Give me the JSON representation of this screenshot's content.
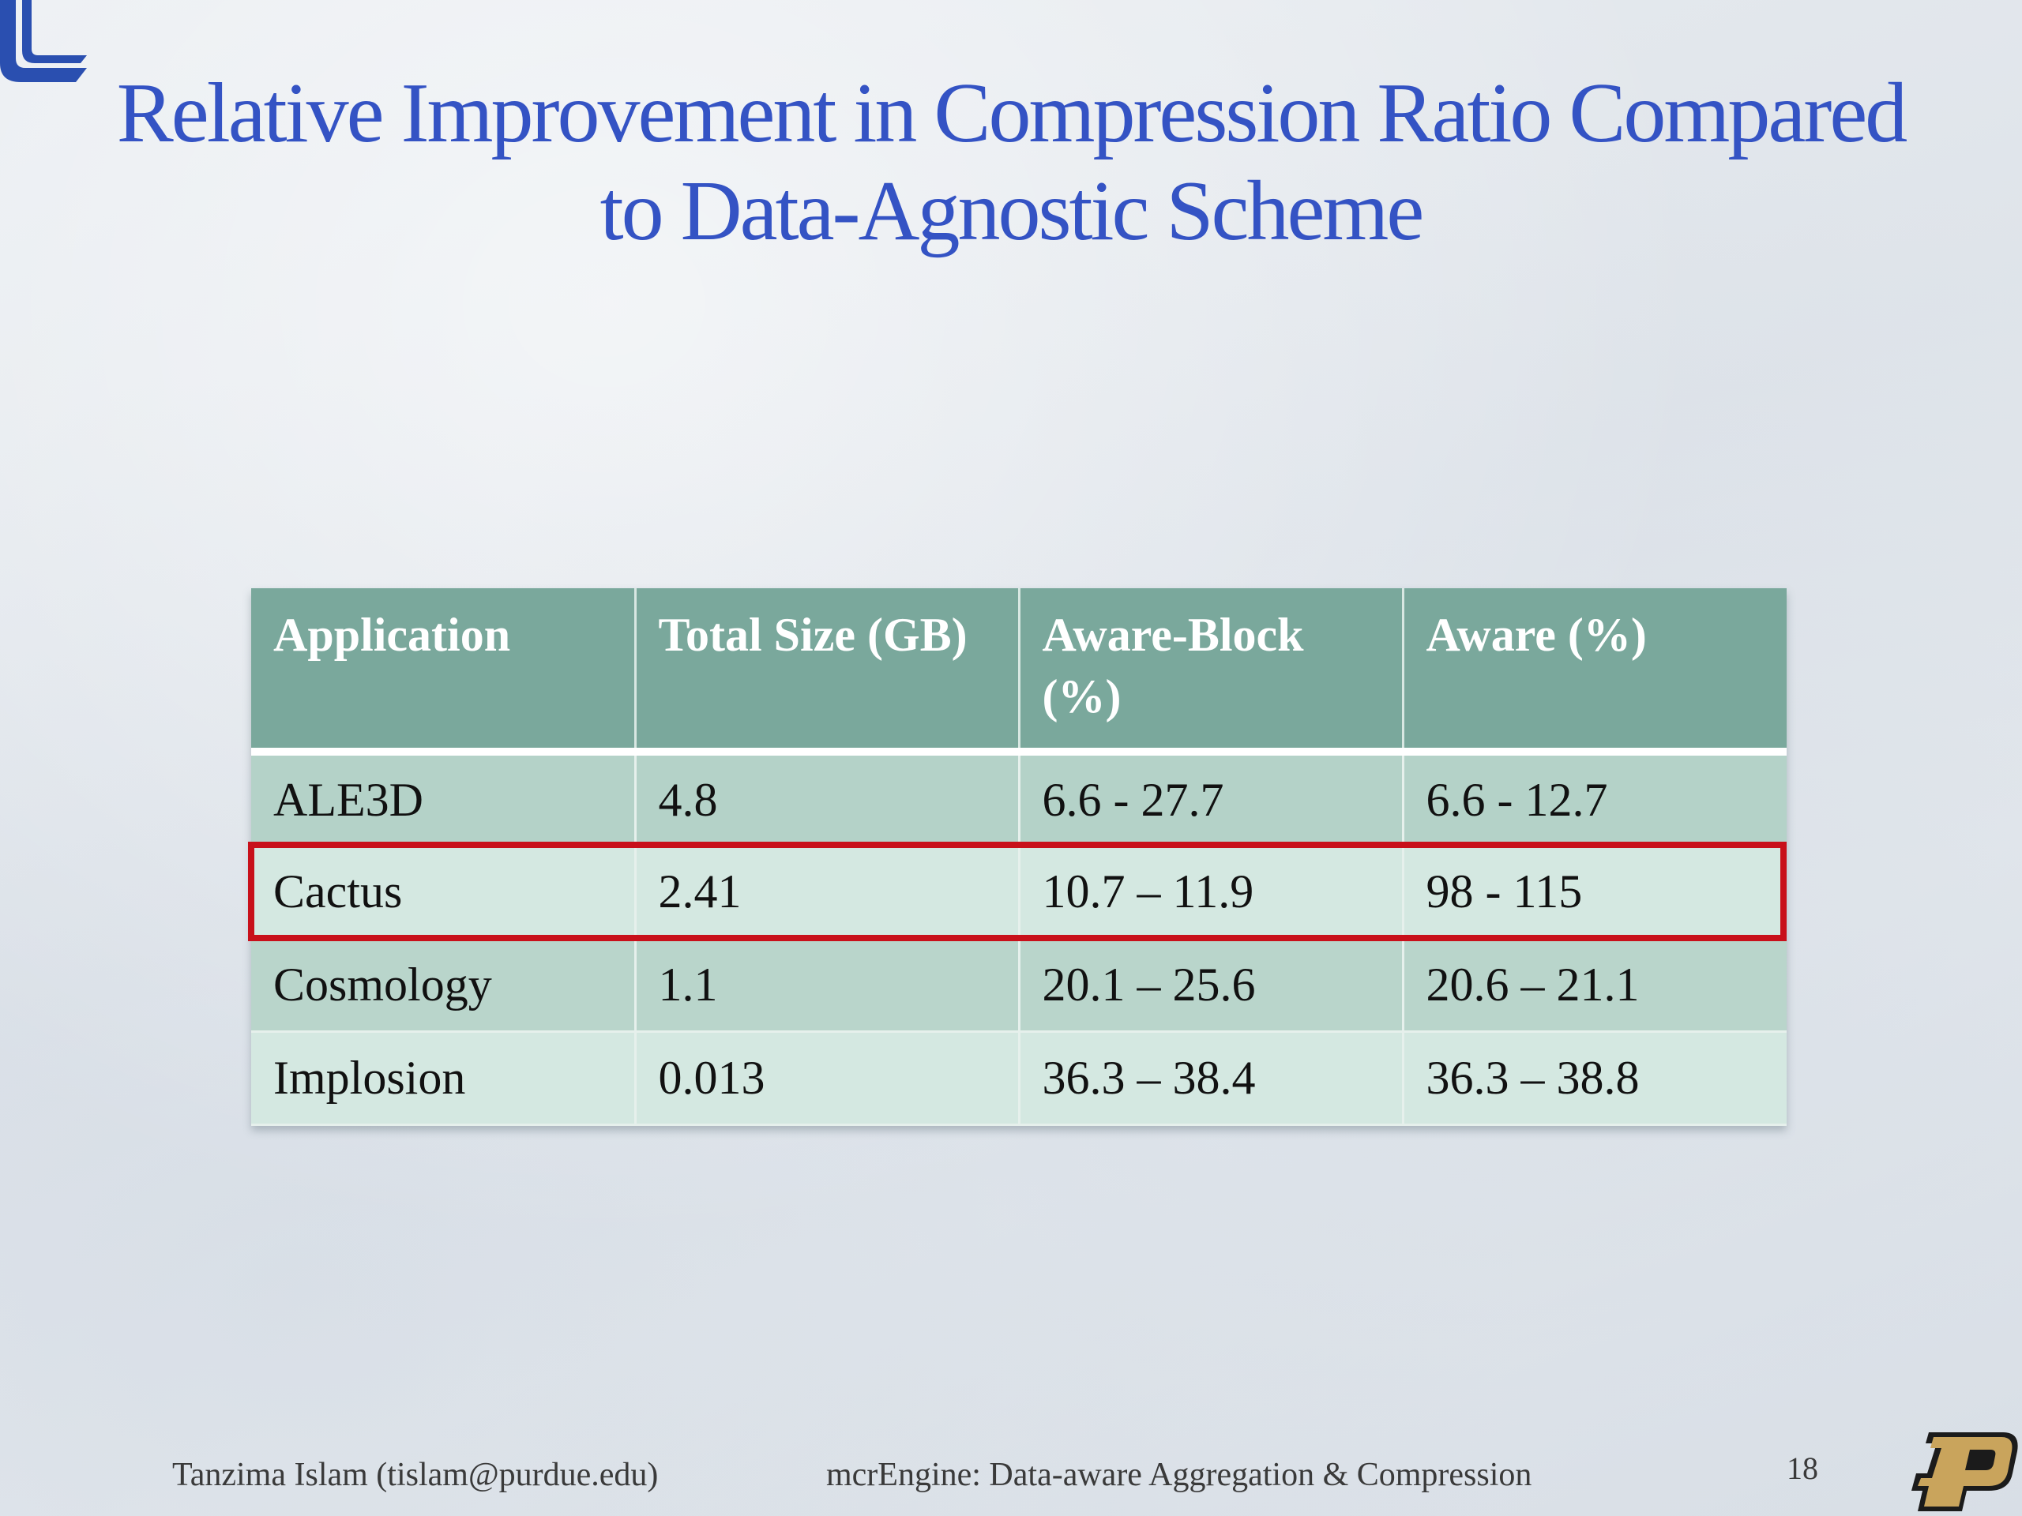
{
  "slide": {
    "title_line1": "Relative Improvement in Compression Ratio Compared",
    "title_line2": "to Data-Agnostic Scheme",
    "page_number": "18",
    "footer_author": "Tanzima Islam (tislam@purdue.edu)",
    "footer_title": "mcrEngine: Data-aware Aggregation & Compression"
  },
  "table": {
    "headers": [
      "Application",
      "Total Size (GB)",
      "Aware-Block (%)",
      "Aware (%)"
    ],
    "rows": [
      [
        "ALE3D",
        "4.8",
        "6.6 - 27.7",
        "6.6 - 12.7"
      ],
      [
        "Cactus",
        "2.41",
        "10.7 – 11.9",
        "98 - 115"
      ],
      [
        "Cosmology",
        "1.1",
        "20.1 – 25.6",
        "20.6 – 21.1"
      ],
      [
        "Implosion",
        "0.013",
        "36.3 – 38.4",
        "36.3 – 38.8"
      ]
    ],
    "highlighted_row": "Cactus"
  },
  "colors": {
    "title": "#3453c4",
    "header_bg": "#7aa89c",
    "row_dark": "#b4d2c8",
    "row_light": "#d4e8e1",
    "highlight": "#c8101a"
  },
  "icons": [
    "institution-logo-icon",
    "purdue-p-logo-icon"
  ]
}
